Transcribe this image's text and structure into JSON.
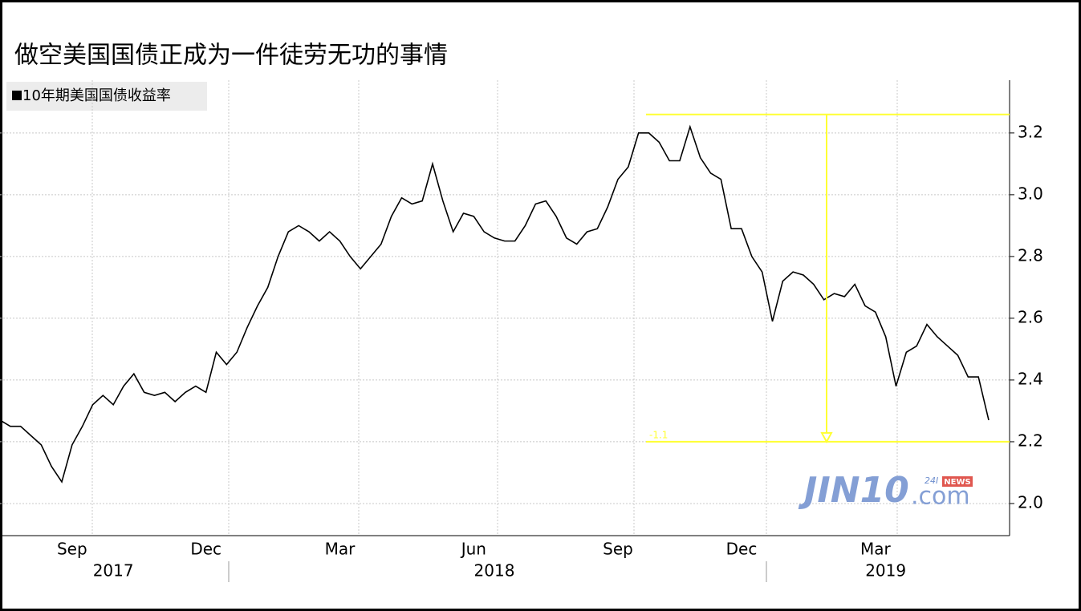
{
  "chart_data": {
    "type": "line",
    "title": "做空美国国债正成为一件徒劳无功的事情",
    "categories": [
      null,
      null,
      null,
      null,
      null,
      null,
      null,
      "Sep",
      null,
      null,
      null,
      null,
      null,
      null,
      null,
      null,
      null,
      null,
      null,
      null,
      "Dec",
      null,
      null,
      null,
      null,
      null,
      null,
      null,
      null,
      null,
      null,
      null,
      null,
      "Mar",
      null,
      null,
      null,
      null,
      null,
      null,
      null,
      null,
      null,
      null,
      null,
      null,
      "Jun",
      null,
      null,
      null,
      null,
      null,
      null,
      null,
      null,
      null,
      null,
      null,
      null,
      null,
      "Sep",
      null,
      null,
      null,
      null,
      null,
      null,
      null,
      null,
      null,
      null,
      null,
      "Dec",
      null,
      null,
      null,
      null,
      null,
      null,
      null,
      null,
      null,
      null,
      null,
      null,
      "Mar",
      null,
      null,
      null,
      null,
      null,
      null,
      null,
      null,
      null,
      null,
      null
    ],
    "years": [
      null,
      null,
      null,
      null,
      null,
      null,
      null,
      null,
      null,
      null,
      null,
      "2017",
      null,
      null,
      null,
      null,
      null,
      null,
      null,
      null,
      null,
      null,
      null,
      null,
      null,
      null,
      null,
      null,
      null,
      null,
      null,
      null,
      null,
      null,
      null,
      null,
      null,
      null,
      null,
      null,
      null,
      null,
      null,
      null,
      null,
      null,
      null,
      null,
      "2018",
      null,
      null,
      null,
      null,
      null,
      null,
      null,
      null,
      null,
      null,
      null,
      null,
      null,
      null,
      null,
      null,
      null,
      null,
      null,
      null,
      null,
      null,
      null,
      null,
      null,
      null,
      null,
      null,
      null,
      null,
      null,
      null,
      null,
      null,
      null,
      null,
      null,
      "2019",
      null,
      null,
      null,
      null,
      null,
      null,
      null,
      null,
      null,
      null
    ],
    "series": [
      {
        "name": "10年期美国国债收益率",
        "color": "#000000",
        "values": [
          2.27,
          2.25,
          2.25,
          2.22,
          2.19,
          2.12,
          2.07,
          2.19,
          2.25,
          2.32,
          2.35,
          2.32,
          2.38,
          2.42,
          2.36,
          2.35,
          2.36,
          2.33,
          2.36,
          2.38,
          2.36,
          2.49,
          2.45,
          2.49,
          2.57,
          2.64,
          2.7,
          2.8,
          2.88,
          2.9,
          2.88,
          2.85,
          2.88,
          2.85,
          2.8,
          2.76,
          2.8,
          2.84,
          2.93,
          2.99,
          2.97,
          2.98,
          3.1,
          2.98,
          2.88,
          2.94,
          2.93,
          2.88,
          2.86,
          2.85,
          2.85,
          2.9,
          2.97,
          2.98,
          2.93,
          2.86,
          2.84,
          2.88,
          2.89,
          2.96,
          3.05,
          3.09,
          3.2,
          3.2,
          3.17,
          3.11,
          3.11,
          3.22,
          3.12,
          3.07,
          3.05,
          2.89,
          2.89,
          2.8,
          2.75,
          2.59,
          2.72,
          2.75,
          2.74,
          2.71,
          2.66,
          2.68,
          2.67,
          2.71,
          2.64,
          2.62,
          2.54,
          2.38,
          2.49,
          2.51,
          2.58,
          2.54,
          2.51,
          2.48,
          2.41,
          2.41,
          2.27
        ]
      }
    ],
    "annotation": {
      "label": "-1.1",
      "high": 3.26,
      "low": 2.2,
      "color": "#ffff33"
    },
    "ylim": [
      1.896,
      3.371
    ],
    "yticks": [
      {
        "value": 2,
        "label": "2.0"
      },
      2.2,
      2.4,
      2.6,
      2.8,
      {
        "value": 3,
        "label": "3.0"
      },
      3.2
    ],
    "grid": true,
    "watermark": {
      "brand": "JIN10",
      "suffix": ".com",
      "tag": "24I",
      "badge": "NEWS"
    }
  }
}
